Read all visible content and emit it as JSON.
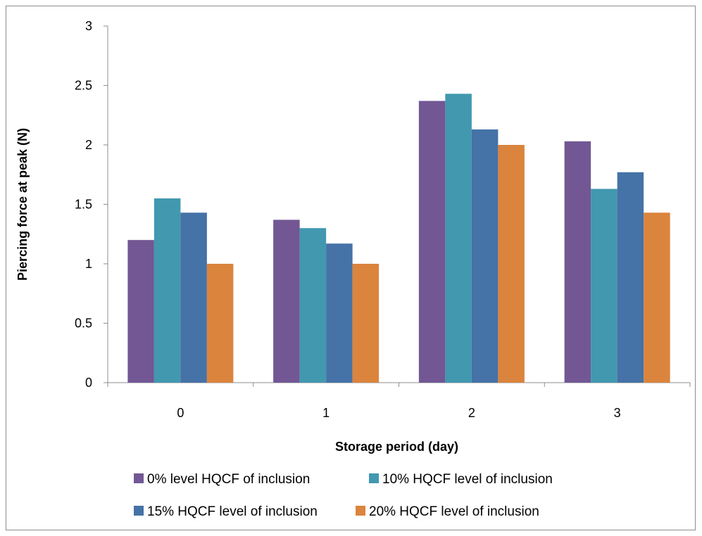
{
  "chart_data": {
    "type": "bar",
    "categories": [
      "0",
      "1",
      "2",
      "3"
    ],
    "series": [
      {
        "name": "0% level HQCF of inclusion",
        "color": "#725794",
        "values": [
          1.2,
          1.37,
          2.37,
          2.03
        ]
      },
      {
        "name": "10% HQCF level of inclusion",
        "color": "#4198af",
        "values": [
          1.55,
          1.3,
          2.43,
          1.63
        ]
      },
      {
        "name": "15% HQCF level of inclusion",
        "color": "#4572a7",
        "values": [
          1.43,
          1.17,
          2.13,
          1.77
        ]
      },
      {
        "name": "20% HQCF level of inclusion",
        "color": "#db843d",
        "values": [
          1.0,
          1.0,
          2.0,
          1.43
        ]
      }
    ],
    "xlabel": "Storage period (day)",
    "ylabel": "Piercing force at peak (N)",
    "ylim": [
      0,
      3
    ],
    "yticks": [
      "0",
      "0.5",
      "1",
      "1.5",
      "2",
      "2.5",
      "3"
    ],
    "grid": false,
    "legend_position": "bottom"
  }
}
